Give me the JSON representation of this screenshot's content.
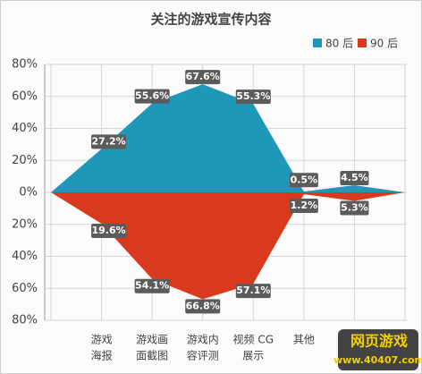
{
  "chart_data": {
    "type": "area",
    "title": "关注的游戏宣传内容",
    "categories": [
      null,
      [
        "游戏",
        "海报"
      ],
      [
        "游戏画",
        "面截图"
      ],
      [
        "游戏内",
        "容评测"
      ],
      [
        "视频 CG",
        "展示"
      ],
      [
        "其他"
      ],
      null,
      null
    ],
    "series": [
      {
        "name": "80 后",
        "color": "#1f97b9",
        "values": [
          0,
          27.2,
          55.6,
          67.6,
          55.3,
          0.5,
          4.5,
          0
        ],
        "value_labels": [
          null,
          "27.2%",
          "55.6%",
          "67.6%",
          "55.3%",
          "0.5%",
          "4.5%",
          null
        ]
      },
      {
        "name": "90 后",
        "color": "#d93a1e",
        "values": [
          0,
          -19.6,
          -54.1,
          -66.8,
          -57.1,
          -1.2,
          -5.3,
          0
        ],
        "value_labels": [
          null,
          "19.6%",
          "54.1%",
          "66.8%",
          "57.1%",
          "1.2%",
          "5.3%",
          null
        ]
      }
    ],
    "ylim": [
      -80,
      80
    ],
    "yticks": [
      {
        "value": 80,
        "label": "80%"
      },
      {
        "value": 60,
        "label": "60%"
      },
      {
        "value": 40,
        "label": "40%"
      },
      {
        "value": 20,
        "label": "20%"
      },
      {
        "value": 0,
        "label": "0%"
      },
      {
        "value": -20,
        "label": "20%"
      },
      {
        "value": -40,
        "label": "40%"
      },
      {
        "value": -60,
        "label": "60%"
      },
      {
        "value": -80,
        "label": "80%"
      }
    ],
    "grid": true,
    "legend": "top-right",
    "watermark": [
      "网页游戏",
      "www.40407.com"
    ]
  }
}
